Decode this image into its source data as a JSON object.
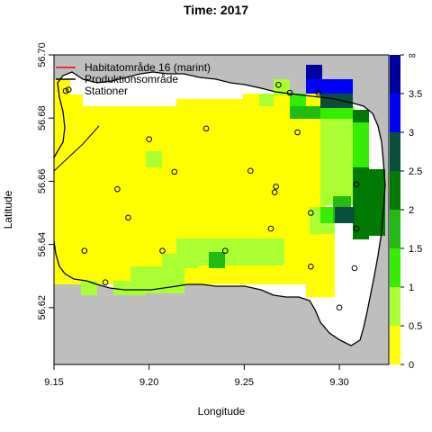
{
  "chart_data": {
    "type": "heatmap",
    "title": "Time: 2017",
    "xlabel": "Longitude",
    "ylabel": "Latitude",
    "xlim": [
      9.15,
      9.326
    ],
    "ylim": [
      56.602,
      56.7
    ],
    "x_ticks": [
      9.15,
      9.2,
      9.25,
      9.3
    ],
    "x_tick_labels": [
      "9.15",
      "9.20",
      "9.25",
      "9.30"
    ],
    "y_ticks": [
      56.62,
      56.64,
      56.66,
      56.68,
      56.7
    ],
    "y_tick_labels": [
      "56.62",
      "56.64",
      "56.66",
      "56.68",
      "56.70"
    ],
    "grid": false,
    "legend": {
      "placement": "top-left",
      "entries": [
        {
          "label": "Habitatområde 16 (marint)",
          "symbol": "line",
          "color": "#ff0000"
        },
        {
          "label": "Produktionsområde",
          "symbol": "line",
          "color": "#000000"
        },
        {
          "label": "Stationer",
          "symbol": "circle",
          "color": "#000000"
        }
      ]
    },
    "colorbar": {
      "breaks": [
        0,
        0.5,
        1,
        1.5,
        2,
        2.5,
        3,
        3.5,
        "∞"
      ],
      "tick_labels": [
        "0",
        "0.5",
        "1",
        "1.5",
        "2",
        "2.5",
        "3",
        "3.5",
        "∞"
      ],
      "colors": [
        "#ffff00",
        "#aaff33",
        "#33ee00",
        "#22bb11",
        "#007a00",
        "#0a4f3c",
        "#0000ff",
        "#0000a0"
      ]
    },
    "land_color": "#bebebe",
    "stations": [
      {
        "x": 9.1577,
        "y": 56.689
      },
      {
        "x": 9.2,
        "y": 56.6733
      },
      {
        "x": 9.23,
        "y": 56.6767
      },
      {
        "x": 9.2133,
        "y": 56.663
      },
      {
        "x": 9.2533,
        "y": 56.6633
      },
      {
        "x": 9.2667,
        "y": 56.6583
      },
      {
        "x": 9.266,
        "y": 56.6565
      },
      {
        "x": 9.1833,
        "y": 56.6575
      },
      {
        "x": 9.189,
        "y": 56.6485
      },
      {
        "x": 9.264,
        "y": 56.645
      },
      {
        "x": 9.285,
        "y": 56.65
      },
      {
        "x": 9.278,
        "y": 56.6755
      },
      {
        "x": 9.268,
        "y": 56.6905
      },
      {
        "x": 9.274,
        "y": 56.688
      },
      {
        "x": 9.289,
        "y": 56.688
      },
      {
        "x": 9.309,
        "y": 56.659
      },
      {
        "x": 9.309,
        "y": 56.645
      },
      {
        "x": 9.166,
        "y": 56.638
      },
      {
        "x": 9.207,
        "y": 56.638
      },
      {
        "x": 9.24,
        "y": 56.638
      },
      {
        "x": 9.285,
        "y": 56.633
      },
      {
        "x": 9.308,
        "y": 56.6325
      },
      {
        "x": 9.177,
        "y": 56.628
      },
      {
        "x": 9.3,
        "y": 56.62
      }
    ]
  }
}
